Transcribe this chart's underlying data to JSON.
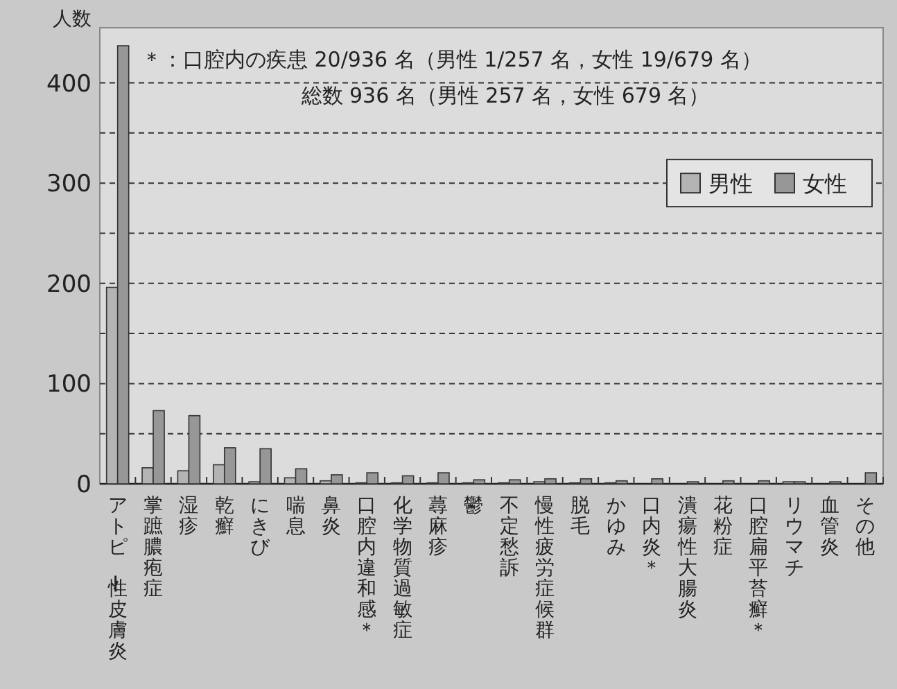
{
  "chart_data": {
    "type": "bar",
    "ylabel": "人数",
    "annotations": [
      "＊：口腔内の疾患 20/936 名（男性 1/257 名，女性 19/679 名）",
      "総数 936 名（男性 257 名，女性 679 名）"
    ],
    "categories": [
      "アトピー性皮膚炎",
      "掌蹠膿疱症",
      "湿疹",
      "乾癬",
      "にきび",
      "喘息",
      "鼻炎",
      "口腔内違和感＊",
      "化学物質過敏症",
      "蕁麻疹",
      "鬱",
      "不定愁訴",
      "慢性疲労症候群",
      "脱毛",
      "かゆみ",
      "口内炎＊",
      "潰瘍性大腸炎",
      "花粉症",
      "口腔扁平苔癬＊",
      "リウマチ",
      "血管炎",
      "その他"
    ],
    "series": [
      {
        "name": "男性",
        "color": "#b4b4b4",
        "values": [
          196,
          16,
          13,
          19,
          2,
          6,
          3,
          1,
          1,
          1,
          1,
          1,
          2,
          1,
          1,
          0,
          0,
          0,
          0,
          2,
          0,
          0
        ]
      },
      {
        "name": "女性",
        "color": "#979797",
        "values": [
          437,
          73,
          68,
          36,
          35,
          15,
          9,
          11,
          8,
          11,
          4,
          4,
          5,
          5,
          3,
          5,
          2,
          3,
          3,
          2,
          2,
          11
        ]
      }
    ],
    "ylim": [
      0,
      455
    ],
    "yticks": [
      0,
      {
        "value": 50,
        "label": null
      },
      100,
      {
        "value": 150,
        "label": null
      },
      200,
      {
        "value": 250,
        "label": null
      },
      300,
      {
        "value": 350,
        "label": null
      },
      400
    ],
    "grid": "y",
    "legend": "top right"
  }
}
